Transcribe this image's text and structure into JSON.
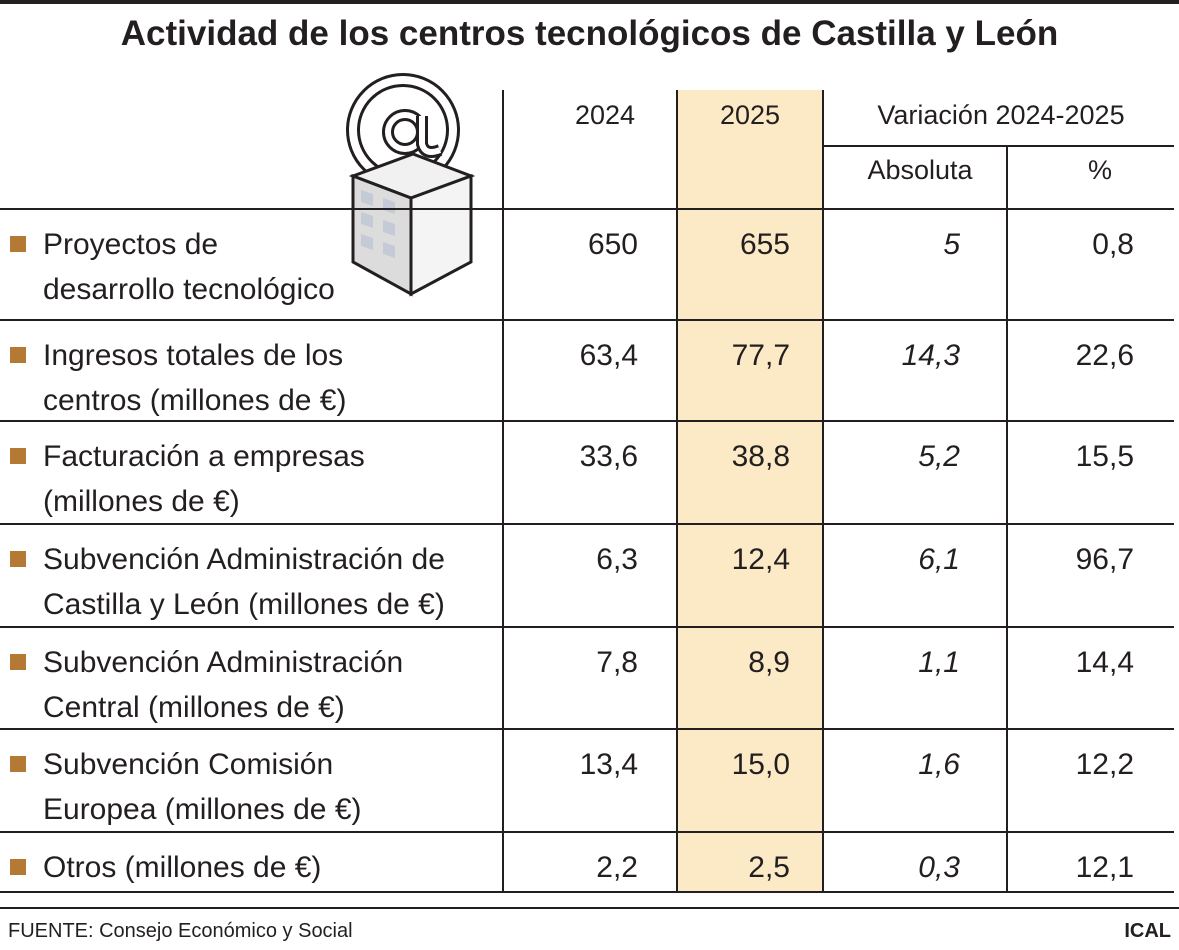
{
  "title": "Actividad de los centros tecnológicos de Castilla y León",
  "headers": {
    "y2024": "2024",
    "y2025": "2025",
    "variation": "Variación 2024-2025",
    "absolute": "Absoluta",
    "percent": "%"
  },
  "chart_data": {
    "type": "table",
    "title": "Actividad de los centros tecnológicos de Castilla y León",
    "columns": [
      "2024",
      "2025",
      "Absoluta",
      "%"
    ],
    "rows": [
      {
        "label": [
          "Proyectos de",
          "desarrollo tecnológico"
        ],
        "y2024": "650",
        "y2025": "655",
        "abs": "5",
        "pct": "0,8"
      },
      {
        "label": [
          "Ingresos totales de los",
          "centros (millones de €)"
        ],
        "y2024": "63,4",
        "y2025": "77,7",
        "abs": "14,3",
        "pct": "22,6"
      },
      {
        "label": [
          "Facturación a empresas",
          "(millones de €)"
        ],
        "y2024": "33,6",
        "y2025": "38,8",
        "abs": "5,2",
        "pct": "15,5"
      },
      {
        "label": [
          "Subvención Administración de",
          "Castilla y León (millones de €)"
        ],
        "y2024": "6,3",
        "y2025": "12,4",
        "abs": "6,1",
        "pct": "96,7"
      },
      {
        "label": [
          "Subvención Administración",
          "Central (millones de €)"
        ],
        "y2024": "7,8",
        "y2025": "8,9",
        "abs": "1,1",
        "pct": "14,4"
      },
      {
        "label": [
          "Subvención Comisión",
          "Europea (millones de €)"
        ],
        "y2024": "13,4",
        "y2025": "15,0",
        "abs": "1,6",
        "pct": "12,2"
      },
      {
        "label": [
          "Otros (millones de €)"
        ],
        "y2024": "2,2",
        "y2025": "2,5",
        "abs": "0,3",
        "pct": "12,1"
      }
    ]
  },
  "colors": {
    "highlight_column": "#fce9c6",
    "bullet": "#b47a34",
    "text": "#231f20"
  },
  "icon": "building-with-at-sign-icon",
  "footer": {
    "source": "FUENTE: Consejo Económico y Social",
    "credit": "ICAL"
  }
}
